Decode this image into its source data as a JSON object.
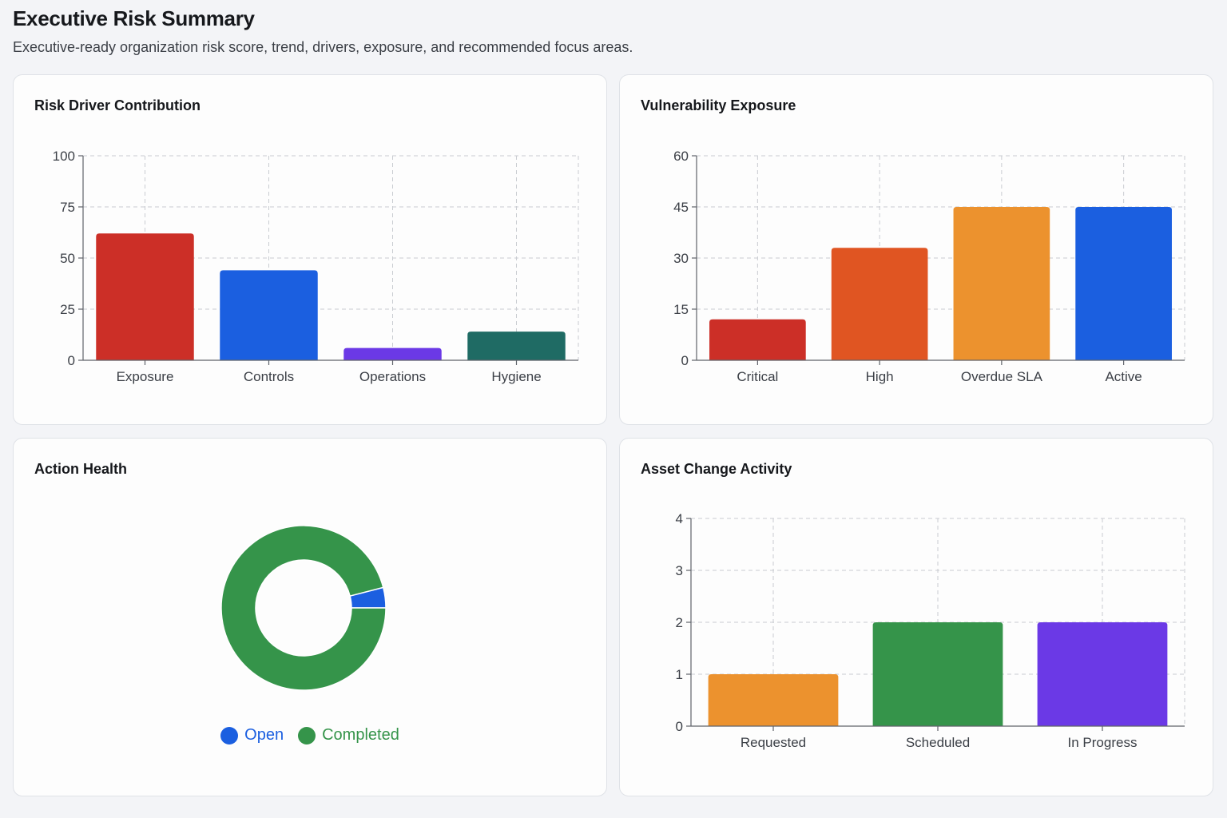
{
  "header": {
    "title": "Executive Risk Summary",
    "subtitle": "Executive-ready organization risk score, trend, drivers, exposure, and recommended focus areas."
  },
  "cards": {
    "risk_driver": {
      "title": "Risk Driver Contribution"
    },
    "vuln_exposure": {
      "title": "Vulnerability Exposure"
    },
    "action_health": {
      "title": "Action Health"
    },
    "asset_change": {
      "title": "Asset Change Activity"
    }
  },
  "chart_data": [
    {
      "id": "risk_driver",
      "type": "bar",
      "title": "Risk Driver Contribution",
      "categories": [
        "Exposure",
        "Controls",
        "Operations",
        "Hygiene"
      ],
      "values": [
        62,
        44,
        6,
        14
      ],
      "colors": [
        "#cc2f27",
        "#1b5fe0",
        "#6b39e6",
        "#1f6b64"
      ],
      "ylim": [
        0,
        100
      ],
      "yticks": [
        0,
        25,
        50,
        75,
        100
      ],
      "grid": true
    },
    {
      "id": "vuln_exposure",
      "type": "bar",
      "title": "Vulnerability Exposure",
      "categories": [
        "Critical",
        "High",
        "Overdue SLA",
        "Active"
      ],
      "values": [
        12,
        33,
        45,
        45
      ],
      "colors": [
        "#cc2f27",
        "#e05522",
        "#ec922e",
        "#1b5fe0"
      ],
      "ylim": [
        0,
        60
      ],
      "yticks": [
        0,
        15,
        30,
        45,
        60
      ],
      "grid": true
    },
    {
      "id": "action_health",
      "type": "pie",
      "title": "Action Health",
      "labels": [
        "Open",
        "Completed"
      ],
      "values": [
        1,
        24
      ],
      "colors": [
        "#1b5fe0",
        "#35944a"
      ],
      "legend": "bottom"
    },
    {
      "id": "asset_change",
      "type": "bar",
      "title": "Asset Change Activity",
      "categories": [
        "Requested",
        "Scheduled",
        "In Progress"
      ],
      "values": [
        1,
        2,
        2
      ],
      "colors": [
        "#ec922e",
        "#35944a",
        "#6b39e6"
      ],
      "ylim": [
        0,
        4
      ],
      "yticks": [
        0,
        1,
        2,
        3,
        4
      ],
      "grid": true
    }
  ]
}
